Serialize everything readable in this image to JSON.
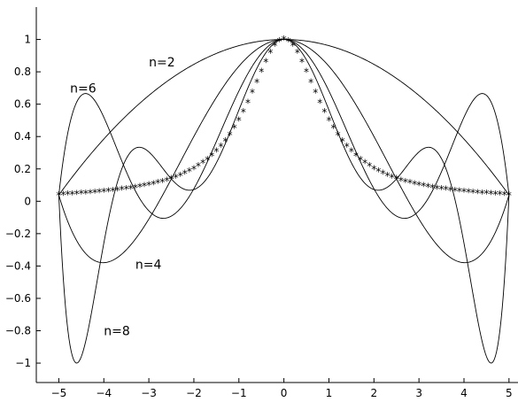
{
  "chart_data": {
    "type": "line",
    "title": "",
    "xlabel": "",
    "ylabel": "",
    "xlim": [
      -5.5,
      5.2
    ],
    "ylim": [
      -1.12,
      1.2
    ],
    "xticks": [
      -5,
      -4,
      -3,
      -2,
      -1,
      0,
      1,
      2,
      3,
      4,
      5
    ],
    "yticks": [
      -1,
      -0.8,
      -0.6,
      -0.4,
      -0.2,
      0,
      0.2,
      0.4,
      0.6,
      0.8,
      1
    ],
    "xtick_labels": [
      "−5",
      "−4",
      "−3",
      "−2",
      "−1",
      "0",
      "1",
      "2",
      "3",
      "4",
      "5"
    ],
    "ytick_labels": [
      "−1",
      "−0.8",
      "−0.6",
      "−0.4",
      "−0.2",
      "0",
      "0.2",
      "0.4",
      "0.6",
      "0.8",
      "1"
    ],
    "grid": false,
    "function": {
      "marker": "*",
      "x_start": -5,
      "x_end": 5,
      "num_points": 101,
      "formula": "1/(1+x^2)"
    },
    "series": [
      {
        "name": "n=2",
        "nodes": [
          -5,
          0,
          5
        ]
      },
      {
        "name": "n=4",
        "nodes": [
          -5,
          -2.5,
          0,
          2.5,
          5
        ]
      },
      {
        "name": "n=6",
        "nodes": [
          -5,
          -3.3333,
          -1.6667,
          0,
          1.6667,
          3.3333,
          5
        ]
      },
      {
        "name": "n=8",
        "nodes": [
          -5,
          -3.75,
          -2.5,
          -1.25,
          0,
          1.25,
          2.5,
          3.75,
          5
        ]
      }
    ],
    "annotations": [
      {
        "text": "n=2",
        "x": -3.0,
        "y": 0.86
      },
      {
        "text": "n=6",
        "x": -4.75,
        "y": 0.7
      },
      {
        "text": "n=4",
        "x": -3.3,
        "y": -0.39
      },
      {
        "text": "n=8",
        "x": -4.0,
        "y": -0.8
      }
    ]
  }
}
